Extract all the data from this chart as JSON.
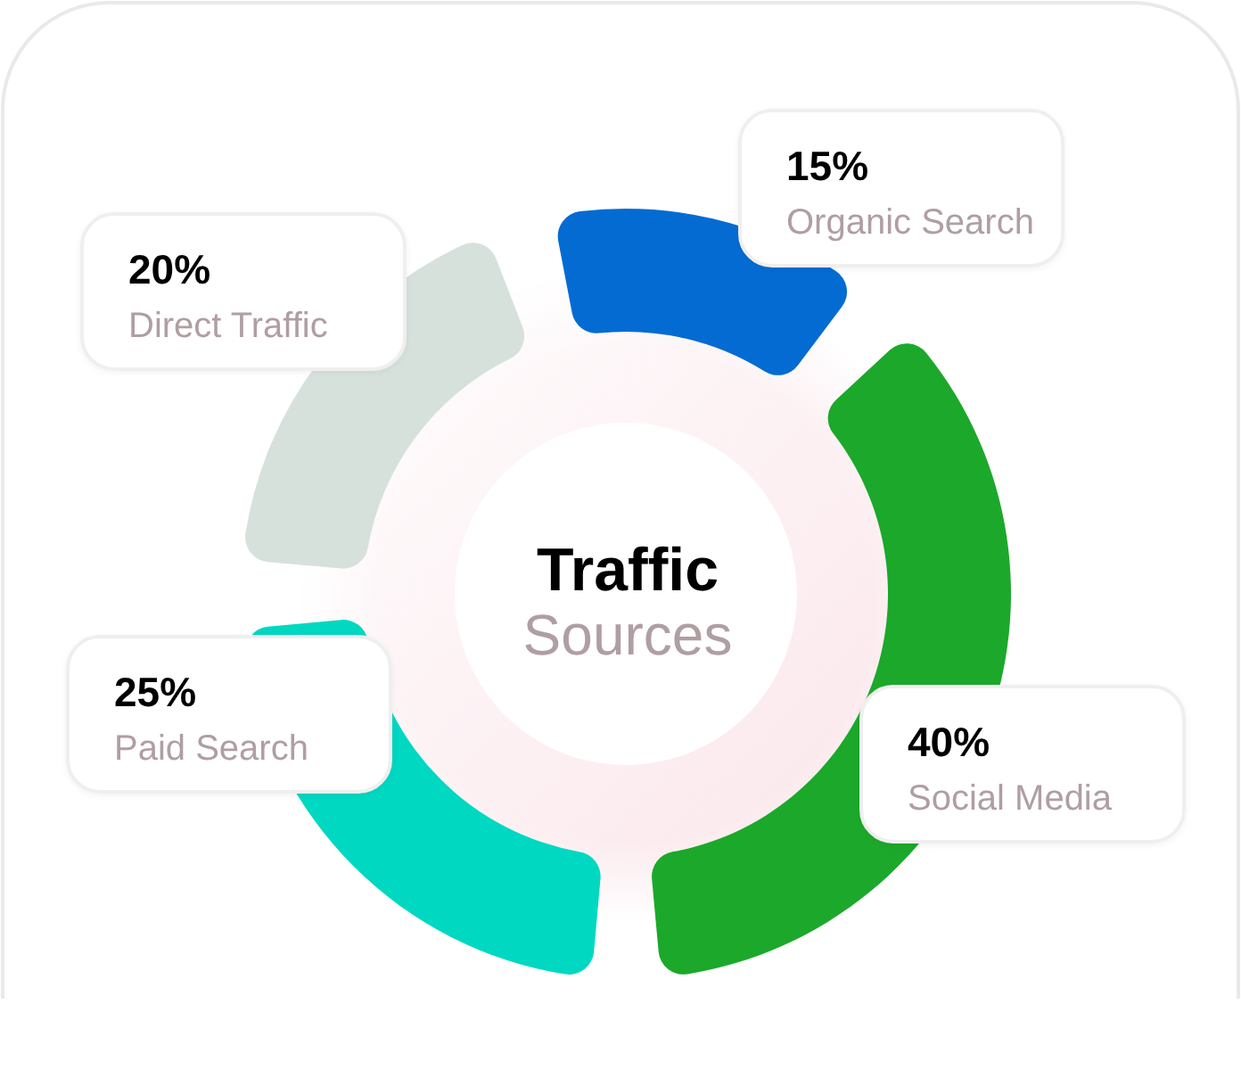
{
  "chart_data": {
    "type": "donut",
    "title": "Traffic",
    "subtitle": "Sources",
    "categories": [
      "Organic Search",
      "Social Media",
      "Paid Search",
      "Direct Traffic"
    ],
    "values": [
      15,
      40,
      25,
      20
    ],
    "colors": [
      "#046bd2",
      "#1ca82a",
      "#00d8c1",
      "#d6e1dc"
    ],
    "value_labels": [
      "15%",
      "40%",
      "25%",
      "20%"
    ]
  }
}
